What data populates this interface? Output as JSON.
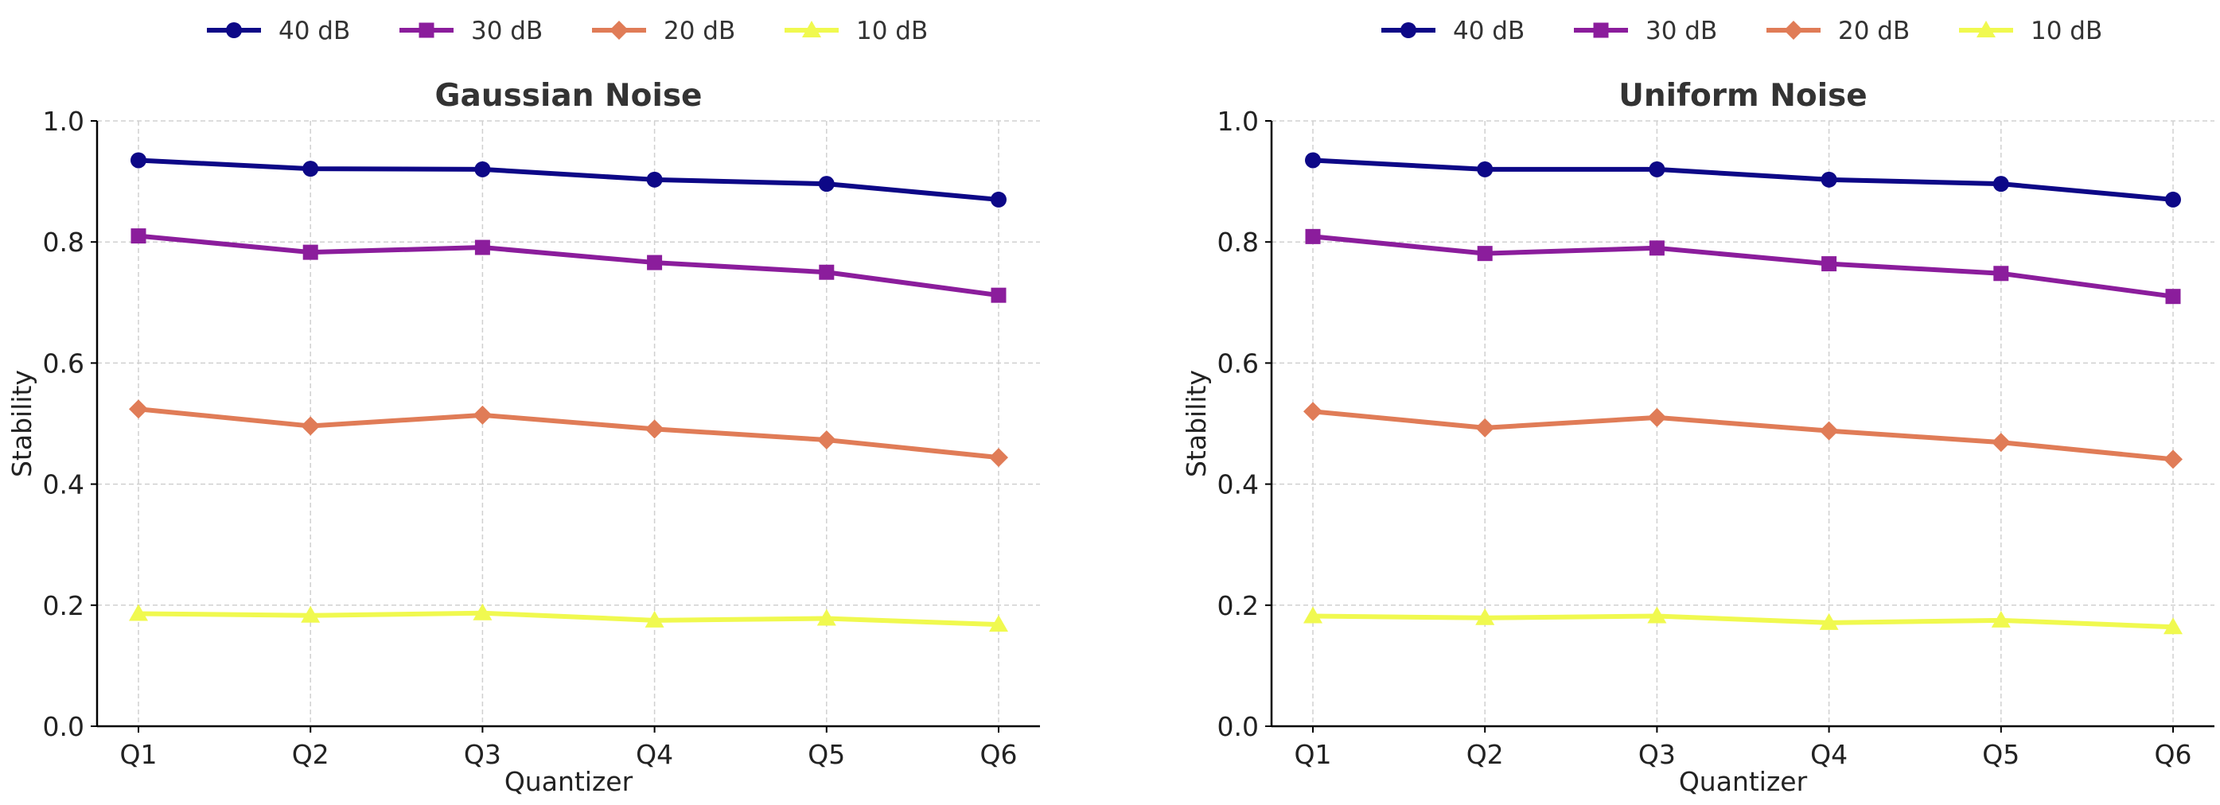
{
  "chart_data": [
    {
      "type": "line",
      "title": "Gaussian Noise",
      "xlabel": "Quantizer",
      "ylabel": "Stability",
      "categories": [
        "Q1",
        "Q2",
        "Q3",
        "Q4",
        "Q5",
        "Q6"
      ],
      "ylim": [
        0,
        1
      ],
      "yticks": [
        "0.0",
        "0.2",
        "0.4",
        "0.6",
        "0.8",
        "1.0"
      ],
      "grid": true,
      "legend_position": "top",
      "series": [
        {
          "name": "40 dB",
          "values": [
            0.935,
            0.921,
            0.92,
            0.903,
            0.896,
            0.87
          ],
          "color": "#0d0887",
          "marker": "circle"
        },
        {
          "name": "30 dB",
          "values": [
            0.81,
            0.783,
            0.791,
            0.766,
            0.75,
            0.712
          ],
          "color": "#8b1d9c",
          "marker": "square"
        },
        {
          "name": "20 dB",
          "values": [
            0.524,
            0.496,
            0.514,
            0.491,
            0.473,
            0.444
          ],
          "color": "#e07c57",
          "marker": "diamond"
        },
        {
          "name": "10 dB",
          "values": [
            0.186,
            0.183,
            0.187,
            0.175,
            0.178,
            0.168
          ],
          "color": "#f0f94f",
          "marker": "triangle"
        }
      ]
    },
    {
      "type": "line",
      "title": "Uniform Noise",
      "xlabel": "Quantizer",
      "ylabel": "Stability",
      "categories": [
        "Q1",
        "Q2",
        "Q3",
        "Q4",
        "Q5",
        "Q6"
      ],
      "ylim": [
        0,
        1
      ],
      "yticks": [
        "0.0",
        "0.2",
        "0.4",
        "0.6",
        "0.8",
        "1.0"
      ],
      "grid": true,
      "legend_position": "top",
      "series": [
        {
          "name": "40 dB",
          "values": [
            0.935,
            0.92,
            0.92,
            0.903,
            0.896,
            0.87
          ],
          "color": "#0d0887",
          "marker": "circle"
        },
        {
          "name": "30 dB",
          "values": [
            0.809,
            0.781,
            0.79,
            0.764,
            0.748,
            0.71
          ],
          "color": "#8b1d9c",
          "marker": "square"
        },
        {
          "name": "20 dB",
          "values": [
            0.52,
            0.493,
            0.51,
            0.488,
            0.469,
            0.441
          ],
          "color": "#e07c57",
          "marker": "diamond"
        },
        {
          "name": "10 dB",
          "values": [
            0.182,
            0.179,
            0.182,
            0.171,
            0.175,
            0.164
          ],
          "color": "#f0f94f",
          "marker": "triangle"
        }
      ]
    }
  ]
}
